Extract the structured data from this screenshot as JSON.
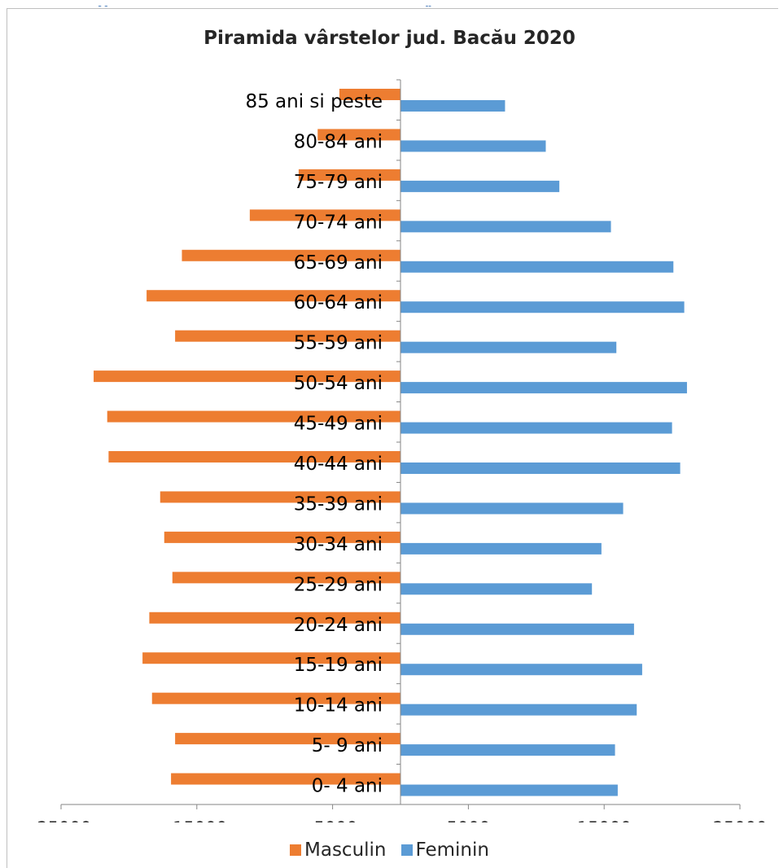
{
  "header_fragment": "...g... ... ...y...",
  "chart_data": {
    "type": "bar",
    "orientation": "horizontal",
    "title": "Piramida vârstelor jud. Bacău 2020",
    "categories": [
      "0- 4 ani",
      "5- 9 ani",
      "10-14 ani",
      "15-19 ani",
      "20-24 ani",
      "25-29 ani",
      "30-34 ani",
      "35-39 ani",
      "40-44 ani",
      "45-49 ani",
      "50-54 ani",
      "55-59 ani",
      "60-64 ani",
      "65-69 ani",
      "70-74 ani",
      "75-79 ani",
      "80-84 ani",
      "85 ani si peste"
    ],
    "series": [
      {
        "name": "Masculin",
        "color": "#ED7D31",
        "values": [
          -16900,
          -16600,
          -18300,
          -19000,
          -18500,
          -16800,
          -17400,
          -17700,
          -21500,
          -21600,
          -22600,
          -16600,
          -18700,
          -16100,
          -11100,
          -7500,
          -6100,
          -4500
        ]
      },
      {
        "name": "Feminin",
        "color": "#5B9BD5",
        "values": [
          16000,
          15800,
          17400,
          17800,
          17200,
          14100,
          14800,
          16400,
          20600,
          20000,
          21100,
          15900,
          20900,
          20100,
          15500,
          11700,
          10700,
          7700
        ]
      }
    ],
    "xlim": [
      -25000,
      25000
    ],
    "x_ticks": [
      "-25000",
      "-15000",
      "-5000",
      "5000",
      "15000",
      "25000"
    ],
    "x_tick_values": [
      -25000,
      -15000,
      -5000,
      5000,
      15000,
      25000
    ],
    "legend_position": "bottom",
    "grid": false
  },
  "legend": {
    "masculin": "Masculin",
    "feminin": "Feminin"
  }
}
